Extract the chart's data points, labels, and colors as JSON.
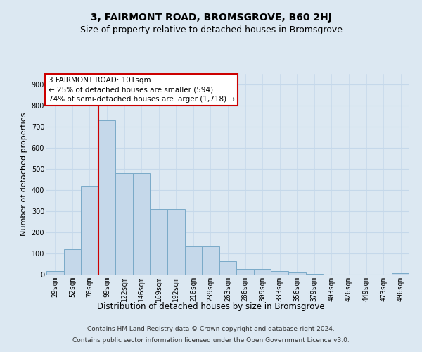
{
  "title": "3, FAIRMONT ROAD, BROMSGROVE, B60 2HJ",
  "subtitle": "Size of property relative to detached houses in Bromsgrove",
  "xlabel": "Distribution of detached houses by size in Bromsgrove",
  "ylabel": "Number of detached properties",
  "footer_line1": "Contains HM Land Registry data © Crown copyright and database right 2024.",
  "footer_line2": "Contains public sector information licensed under the Open Government Licence v3.0.",
  "categories": [
    "29sqm",
    "52sqm",
    "76sqm",
    "99sqm",
    "122sqm",
    "146sqm",
    "169sqm",
    "192sqm",
    "216sqm",
    "239sqm",
    "263sqm",
    "286sqm",
    "309sqm",
    "333sqm",
    "356sqm",
    "379sqm",
    "403sqm",
    "426sqm",
    "449sqm",
    "473sqm",
    "496sqm"
  ],
  "bar_values": [
    18,
    120,
    420,
    730,
    480,
    480,
    310,
    310,
    135,
    135,
    65,
    28,
    28,
    18,
    10,
    5,
    0,
    0,
    0,
    0,
    8
  ],
  "bar_color": "#c5d8ea",
  "bar_edge_color": "#7aaac8",
  "vline_color": "#cc0000",
  "vline_bar_index": 3,
  "annotation_line1": "3 FAIRMONT ROAD: 101sqm",
  "annotation_line2": "← 25% of detached houses are smaller (594)",
  "annotation_line3": "74% of semi-detached houses are larger (1,718) →",
  "annotation_box_facecolor": "#ffffff",
  "annotation_box_edgecolor": "#cc0000",
  "ylim": [
    0,
    950
  ],
  "yticks": [
    0,
    100,
    200,
    300,
    400,
    500,
    600,
    700,
    800,
    900
  ],
  "grid_color": "#c5d8ea",
  "background_color": "#dce8f2",
  "title_fontsize": 10,
  "subtitle_fontsize": 9,
  "ylabel_fontsize": 8,
  "xlabel_fontsize": 8.5,
  "tick_fontsize": 7,
  "annotation_fontsize": 7.5,
  "footer_fontsize": 6.5
}
